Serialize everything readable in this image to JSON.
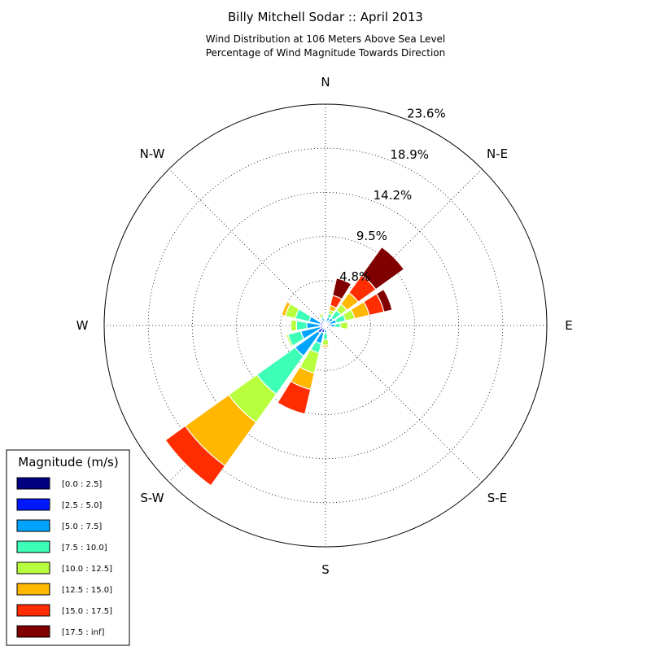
{
  "chart_data": {
    "type": "windrose",
    "title": "Billy Mitchell Sodar :: April 2013",
    "subtitle_lines": [
      "Wind Distribution at 106 Meters Above Sea Level",
      "Percentage of Wind Magnitude Towards Direction"
    ],
    "direction_labels": [
      "N",
      "N-E",
      "E",
      "S-E",
      "S",
      "S-W",
      "W",
      "N-W"
    ],
    "radial_ticks": [
      4.8,
      9.5,
      14.2,
      18.9,
      23.6
    ],
    "radial_tick_labels": [
      "4.8%",
      "9.5%",
      "14.2%",
      "18.9%",
      "23.6%"
    ],
    "r_max": 23.6,
    "legend": {
      "title": "Magnitude (m/s)",
      "placement": "lower-left",
      "bins": [
        {
          "label": "[0.0 : 2.5]",
          "color": "#000080"
        },
        {
          "label": "[2.5 : 5.0]",
          "color": "#0018ff"
        },
        {
          "label": "[5.0 : 7.5]",
          "color": "#00a4ff"
        },
        {
          "label": "[7.5 : 10.0]",
          "color": "#3dffb8"
        },
        {
          "label": "[10.0 : 12.5]",
          "color": "#b8ff3d"
        },
        {
          "label": "[12.5 : 15.0]",
          "color": "#ffb700"
        },
        {
          "label": "[15.0 : 17.5]",
          "color": "#ff2d00"
        },
        {
          "label": "[17.5 : inf]",
          "color": "#800000"
        }
      ]
    },
    "sectors": [
      {
        "dir_deg": 0,
        "cumulative": [
          0.2,
          0.4,
          0.6,
          0.7,
          0.8,
          0.9,
          1.0,
          1.0
        ]
      },
      {
        "dir_deg": 22.5,
        "cumulative": [
          0.2,
          0.5,
          0.9,
          1.3,
          1.7,
          2.2,
          3.3,
          5.2
        ]
      },
      {
        "dir_deg": 45,
        "cumulative": [
          0.2,
          0.5,
          1.0,
          2.0,
          2.8,
          4.3,
          6.6,
          10.3
        ]
      },
      {
        "dir_deg": 67.5,
        "cumulative": [
          0.2,
          0.5,
          1.2,
          2.2,
          3.2,
          4.8,
          6.4,
          7.3
        ]
      },
      {
        "dir_deg": 90,
        "cumulative": [
          0.2,
          0.5,
          1.0,
          1.6,
          2.4,
          2.5,
          2.5,
          2.5
        ]
      },
      {
        "dir_deg": 112.5,
        "cumulative": [
          0.1,
          0.2,
          0.3,
          0.3,
          0.3,
          0.3,
          0.3,
          0.3
        ]
      },
      {
        "dir_deg": 135,
        "cumulative": [
          0.1,
          0.1,
          0.2,
          0.2,
          0.2,
          0.2,
          0.2,
          0.2
        ]
      },
      {
        "dir_deg": 157.5,
        "cumulative": [
          0.1,
          0.2,
          0.3,
          0.3,
          0.3,
          0.3,
          0.3,
          0.3
        ]
      },
      {
        "dir_deg": 180,
        "cumulative": [
          0.2,
          0.4,
          0.8,
          1.5,
          2.1,
          2.3,
          2.3,
          2.3
        ]
      },
      {
        "dir_deg": 202.5,
        "cumulative": [
          0.3,
          0.8,
          2.0,
          3.0,
          5.2,
          7.0,
          9.7,
          9.7
        ]
      },
      {
        "dir_deg": 225,
        "cumulative": [
          0.3,
          1.0,
          4.0,
          9.0,
          12.7,
          18.4,
          21.0,
          21.0
        ]
      },
      {
        "dir_deg": 247.5,
        "cumulative": [
          0.2,
          0.6,
          2.7,
          4.1,
          4.3,
          4.3,
          4.3,
          4.3
        ]
      },
      {
        "dir_deg": 270,
        "cumulative": [
          0.2,
          0.6,
          2.0,
          3.1,
          3.7,
          3.7,
          3.7,
          3.7
        ]
      },
      {
        "dir_deg": 292.5,
        "cumulative": [
          0.2,
          0.6,
          1.8,
          3.3,
          4.4,
          4.8,
          4.8,
          4.8
        ]
      },
      {
        "dir_deg": 315,
        "cumulative": [
          0.2,
          0.6,
          0.7,
          0.7,
          0.7,
          0.7,
          0.7,
          0.7
        ]
      },
      {
        "dir_deg": 337.5,
        "cumulative": [
          0.2,
          0.5,
          0.8,
          1.0,
          1.3,
          1.4,
          1.4,
          1.4
        ]
      }
    ]
  }
}
